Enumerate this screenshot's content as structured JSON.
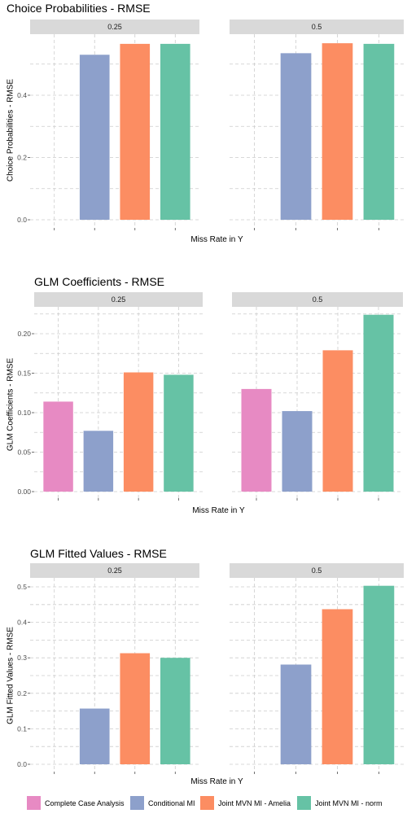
{
  "colors": {
    "Complete Case Analysis": "#e78ac3",
    "Conditional MI": "#8da0cb",
    "Joint MVN MI - Amelia": "#fc8d62",
    "Joint MVN MI - norm": "#66c2a5"
  },
  "legend": {
    "entries": [
      "Complete Case Analysis",
      "Conditional MI",
      "Joint MVN MI - Amelia",
      "Joint MVN MI - norm"
    ],
    "placement": "bottom"
  },
  "chart_data": [
    {
      "type": "bar",
      "title": "Choice Probabilities - RMSE",
      "xlabel": "Miss Rate in Y",
      "ylabel": "Choice Probabilities - RMSE",
      "ylim": [
        0,
        0.57
      ],
      "yticks": [
        0.0,
        0.2,
        0.4
      ],
      "ytick_labels": [
        "0.0",
        "0.2",
        "0.4"
      ],
      "grid": true,
      "facets": [
        {
          "label": "0.25",
          "values": [
            null,
            0.53,
            0.565,
            0.565
          ]
        },
        {
          "label": "0.5",
          "values": [
            null,
            0.535,
            0.567,
            0.565
          ]
        }
      ]
    },
    {
      "type": "bar",
      "title": "GLM Coefficients - RMSE",
      "xlabel": "Miss Rate in Y",
      "ylabel": "GLM Coefficients - RMSE",
      "ylim": [
        0,
        0.225
      ],
      "yticks": [
        0.0,
        0.05,
        0.1,
        0.15,
        0.2
      ],
      "ytick_labels": [
        "0.00",
        "0.05",
        "0.10",
        "0.15",
        "0.20"
      ],
      "grid": true,
      "facets": [
        {
          "label": "0.25",
          "values": [
            0.114,
            0.077,
            0.151,
            0.148
          ]
        },
        {
          "label": "0.5",
          "values": [
            0.13,
            0.102,
            0.179,
            0.224
          ]
        }
      ]
    },
    {
      "type": "bar",
      "title": "GLM Fitted Values - RMSE",
      "xlabel": "Miss Rate in Y",
      "ylabel": "GLM Fitted Values - RMSE",
      "ylim": [
        0,
        0.505
      ],
      "yticks": [
        0.0,
        0.1,
        0.2,
        0.3,
        0.4,
        0.5
      ],
      "ytick_labels": [
        "0.0",
        "0.1",
        "0.2",
        "0.3",
        "0.4",
        "0.5"
      ],
      "grid": true,
      "facets": [
        {
          "label": "0.25",
          "values": [
            null,
            0.157,
            0.313,
            0.3
          ]
        },
        {
          "label": "0.5",
          "values": [
            null,
            0.281,
            0.437,
            0.503
          ]
        }
      ]
    }
  ]
}
